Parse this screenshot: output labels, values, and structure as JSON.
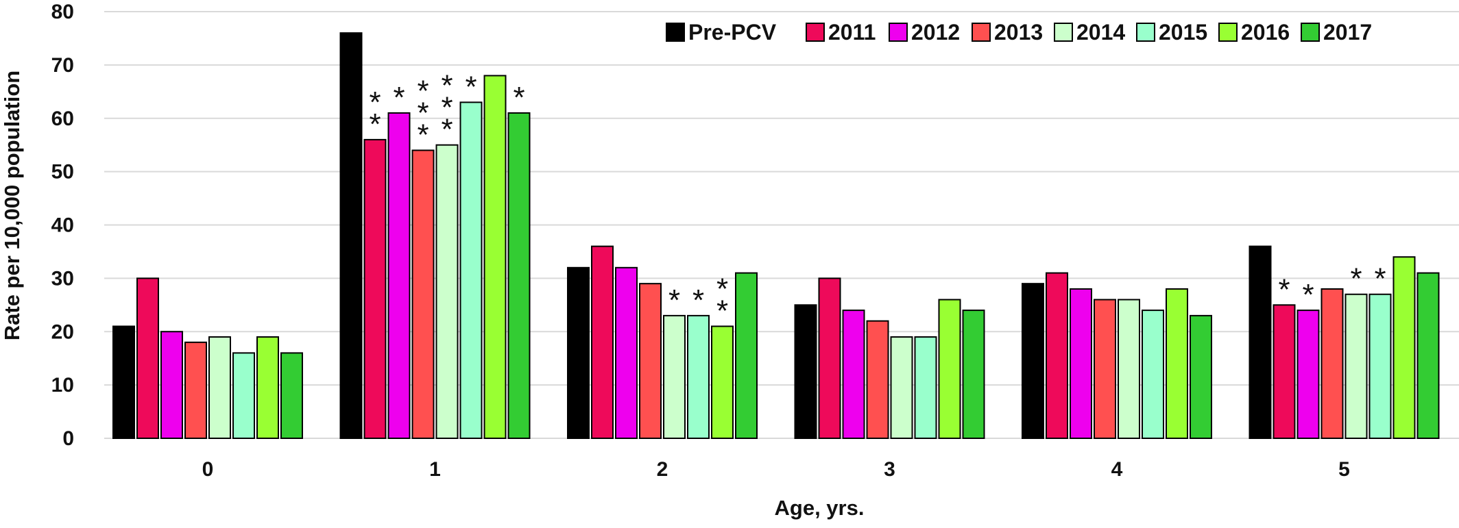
{
  "chart_data": {
    "type": "bar",
    "title": "",
    "xlabel": "Age, yrs.",
    "ylabel": "Rate per 10,000 population",
    "ylim": [
      0,
      80
    ],
    "yticks": [
      0,
      10,
      20,
      30,
      40,
      50,
      60,
      70,
      80
    ],
    "grid": true,
    "legend_position": "top-right",
    "categories": [
      "0",
      "1",
      "2",
      "3",
      "4",
      "5"
    ],
    "series": [
      {
        "name": "Pre-PCV",
        "color": "#000000",
        "values": [
          21,
          76,
          32,
          25,
          29,
          36
        ],
        "stars": [
          0,
          0,
          0,
          0,
          0,
          0
        ]
      },
      {
        "name": "2011",
        "color": "#ee0a5a",
        "values": [
          30,
          56,
          36,
          30,
          31,
          25
        ],
        "stars": [
          0,
          2,
          0,
          0,
          0,
          1
        ]
      },
      {
        "name": "2012",
        "color": "#ee00ee",
        "values": [
          20,
          61,
          32,
          24,
          28,
          24
        ],
        "stars": [
          0,
          1,
          0,
          0,
          0,
          1
        ]
      },
      {
        "name": "2013",
        "color": "#ff5050",
        "values": [
          18,
          54,
          29,
          22,
          26,
          28
        ],
        "stars": [
          0,
          3,
          0,
          0,
          0,
          0
        ]
      },
      {
        "name": "2014",
        "color": "#ccffcc",
        "values": [
          19,
          55,
          23,
          19,
          26,
          27
        ],
        "stars": [
          0,
          3,
          1,
          0,
          0,
          1
        ]
      },
      {
        "name": "2015",
        "color": "#99ffcc",
        "values": [
          16,
          63,
          23,
          19,
          24,
          27
        ],
        "stars": [
          0,
          1,
          1,
          0,
          0,
          1
        ]
      },
      {
        "name": "2016",
        "color": "#99ff33",
        "values": [
          19,
          68,
          21,
          26,
          28,
          34
        ],
        "stars": [
          0,
          0,
          2,
          0,
          0,
          0
        ]
      },
      {
        "name": "2017",
        "color": "#33cc33",
        "values": [
          16,
          61,
          31,
          24,
          23,
          31
        ],
        "stars": [
          0,
          1,
          0,
          0,
          0,
          0
        ]
      }
    ]
  }
}
